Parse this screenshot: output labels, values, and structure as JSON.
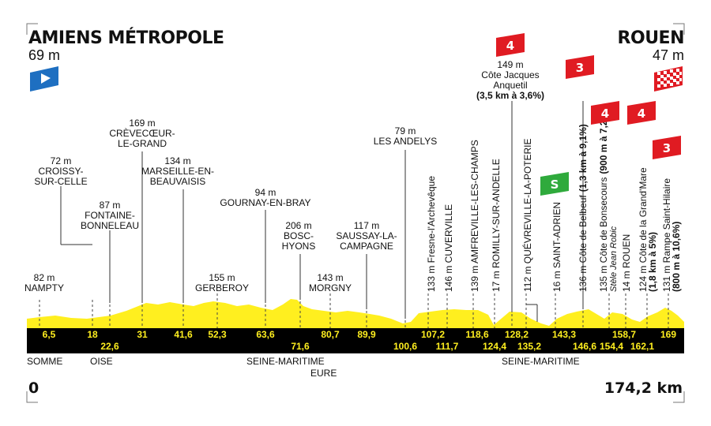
{
  "start": {
    "name": "AMIENS MÉTROPOLE",
    "altitude": "69 m"
  },
  "finish": {
    "name": "ROUEN",
    "altitude": "47 m"
  },
  "distance": {
    "start": "0",
    "end": "174,2 km"
  },
  "colors": {
    "profile": "#ffef1f",
    "band": "#000000",
    "band_text": "#ffef1f",
    "cat4": "#e01b22",
    "cat3": "#e01b22",
    "sprint": "#2faa3c",
    "start_flag": "#1e6fc1"
  },
  "band_km": [
    {
      "label": "6,5",
      "row": "top"
    },
    {
      "label": "18",
      "row": "top"
    },
    {
      "label": "22,6",
      "row": "bottom"
    },
    {
      "label": "31",
      "row": "top"
    },
    {
      "label": "41,6",
      "row": "top"
    },
    {
      "label": "52,3",
      "row": "top"
    },
    {
      "label": "63,6",
      "row": "top"
    },
    {
      "label": "71,6",
      "row": "bottom"
    },
    {
      "label": "80,7",
      "row": "top"
    },
    {
      "label": "89,9",
      "row": "top"
    },
    {
      "label": "100,6",
      "row": "bottom"
    },
    {
      "label": "107,2",
      "row": "top"
    },
    {
      "label": "111,7",
      "row": "bottom"
    },
    {
      "label": "118,6",
      "row": "top"
    },
    {
      "label": "124,4",
      "row": "bottom"
    },
    {
      "label": "128,2",
      "row": "top"
    },
    {
      "label": "135,2",
      "row": "bottom"
    },
    {
      "label": "143,3",
      "row": "top"
    },
    {
      "label": "146,6",
      "row": "bottom"
    },
    {
      "label": "154,4",
      "row": "bottom"
    },
    {
      "label": "158,7",
      "row": "top"
    },
    {
      "label": "162,1",
      "row": "bottom"
    },
    {
      "label": "169",
      "row": "top"
    }
  ],
  "horizontal_labels": [
    {
      "alt": "82 m",
      "name": "NAMPTY"
    },
    {
      "alt": "72 m",
      "name": "CROISSY-\nSUR-CELLE"
    },
    {
      "alt": "87 m",
      "name": "FONTAINE-\nBONNELEAU"
    },
    {
      "alt": "169 m",
      "name": "CRÈVECŒUR-\nLE-GRAND"
    },
    {
      "alt": "134 m",
      "name": "MARSEILLE-EN-\nBEAUVAISIS"
    },
    {
      "alt": "155 m",
      "name": "GERBEROY"
    },
    {
      "alt": "94 m",
      "name": "GOURNAY-EN-BRAY"
    },
    {
      "alt": "206 m",
      "name": "BOSC-\nHYONS"
    },
    {
      "alt": "143 m",
      "name": "MORGNY"
    },
    {
      "alt": "117 m",
      "name": "SAUSSAY-LA-\nCAMPAGNE"
    },
    {
      "alt": "79 m",
      "name": "LES ANDELYS"
    }
  ],
  "vertical_labels": [
    {
      "text": "133 m Fresne-l'Archevêque"
    },
    {
      "text": "146 m CUVERVILLE"
    },
    {
      "text": "139 m AMFREVILLE-LES-CHAMPS"
    },
    {
      "text": "17 m ROMILLY-SUR-ANDELLE"
    },
    {
      "text": "112 m QUÉVREVILLE-LA-POTERIE"
    },
    {
      "text": "16 m SAINT-ADRIEN"
    },
    {
      "text": "136 m Côte de Belbeuf",
      "detail": "(1,3 km à 9,1%)"
    },
    {
      "text": "135 m Côte de Bonsecours",
      "detail": "(900 m à 7,2%)",
      "sub": "Stèle Jean Robic"
    },
    {
      "text": "14 m ROUEN"
    },
    {
      "text": "124 m Côte de la Grand'Mare",
      "detail2": "(1,8 km à 5%)"
    },
    {
      "text": "131 m Rampe Saint-Hilaire",
      "detail2": "(800 m à 10,6%)"
    }
  ],
  "anquetil": {
    "alt": "149 m",
    "name1": "Côte Jacques",
    "name2": "Anquetil",
    "detail": "(3,5 km à 3,6%)"
  },
  "climb_badges": [
    {
      "cat": "4",
      "id": "anquetil"
    },
    {
      "cat": "3",
      "id": "belbeuf"
    },
    {
      "cat": "4",
      "id": "bonsecours"
    },
    {
      "cat": "4",
      "id": "grandmare"
    },
    {
      "cat": "3",
      "id": "sainthilaire"
    }
  ],
  "sprint_badge": {
    "label": "S"
  },
  "regions": [
    {
      "label": "SOMME"
    },
    {
      "label": "OISE"
    },
    {
      "label": "SEINE-MARITIME"
    },
    {
      "label": "EURE"
    },
    {
      "label": "SEINE-MARITIME"
    }
  ]
}
